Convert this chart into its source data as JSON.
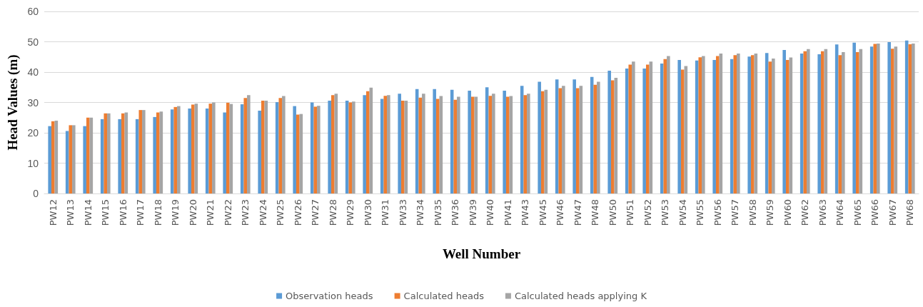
{
  "chart_data": {
    "type": "bar",
    "xlabel": "Well Number",
    "ylabel": "Head Values (m)",
    "categories": [
      "PW12",
      "PW13",
      "PW14",
      "PW15",
      "PW16",
      "PW17",
      "PW18",
      "PW19",
      "PW20",
      "PW21",
      "PW22",
      "PW23",
      "PW24",
      "PW25",
      "PW26",
      "PW27",
      "PW28",
      "PW29",
      "PW30",
      "PW31",
      "PW33",
      "PW34",
      "PW35",
      "PW36",
      "PW39",
      "PW40",
      "PW41",
      "PW43",
      "PW45",
      "PW46",
      "PW47",
      "PW48",
      "PW50",
      "PW51",
      "PW52",
      "PW53",
      "PW54",
      "PW55",
      "PW56",
      "PW57",
      "PW58",
      "PW59",
      "PW60",
      "PW62",
      "PW63",
      "PW64",
      "PW65",
      "PW66",
      "PW67",
      "PW68"
    ],
    "series": [
      {
        "name": "Observation heads",
        "color": "#5b9bd5",
        "values": [
          22.2,
          20.6,
          22.2,
          24.5,
          24.5,
          24.5,
          25.2,
          27.7,
          28.0,
          28.0,
          26.7,
          29.4,
          27.3,
          30.1,
          28.8,
          30.0,
          30.6,
          30.6,
          32.4,
          31.2,
          32.9,
          34.4,
          34.4,
          34.2,
          33.9,
          35.0,
          33.9,
          35.5,
          36.8,
          37.6,
          37.6,
          38.4,
          40.5,
          41.2,
          41.2,
          42.8,
          44.0,
          43.8,
          44.0,
          44.3,
          45.1,
          46.3,
          47.3,
          46.1,
          45.9,
          49.1,
          49.7,
          48.4,
          49.9,
          50.4
        ]
      },
      {
        "name": "Calculated heads",
        "color": "#ed7d31",
        "values": [
          23.8,
          22.5,
          25.0,
          26.4,
          26.4,
          27.5,
          26.7,
          28.5,
          29.3,
          29.6,
          29.9,
          31.5,
          30.6,
          31.5,
          26.0,
          28.6,
          32.4,
          30.0,
          33.7,
          32.2,
          30.6,
          31.6,
          31.2,
          30.9,
          31.9,
          32.2,
          31.9,
          32.4,
          33.7,
          34.7,
          34.7,
          35.8,
          37.3,
          42.5,
          42.5,
          44.3,
          40.8,
          44.9,
          45.3,
          45.6,
          45.6,
          43.5,
          44.0,
          46.9,
          46.9,
          45.6,
          46.6,
          49.3,
          47.7,
          49.2
        ]
      },
      {
        "name": "Calculated heads applying K",
        "color": "#a5a5a5",
        "values": [
          24.0,
          22.5,
          25.0,
          26.4,
          26.7,
          27.5,
          27.0,
          28.8,
          29.6,
          30.0,
          29.5,
          32.4,
          30.6,
          32.1,
          26.2,
          28.9,
          32.9,
          30.3,
          34.9,
          32.4,
          30.6,
          32.9,
          32.1,
          31.9,
          31.9,
          32.9,
          32.1,
          32.9,
          34.2,
          35.5,
          35.5,
          36.8,
          38.1,
          43.5,
          43.5,
          45.3,
          42.0,
          45.3,
          46.1,
          46.1,
          46.1,
          44.5,
          44.8,
          47.6,
          47.6,
          46.6,
          47.6,
          49.4,
          48.4,
          49.4
        ]
      }
    ],
    "ylim": [
      0,
      60
    ],
    "yticks": [
      0,
      10,
      20,
      30,
      40,
      50,
      60
    ],
    "grid": "y",
    "legend": "bottom"
  }
}
